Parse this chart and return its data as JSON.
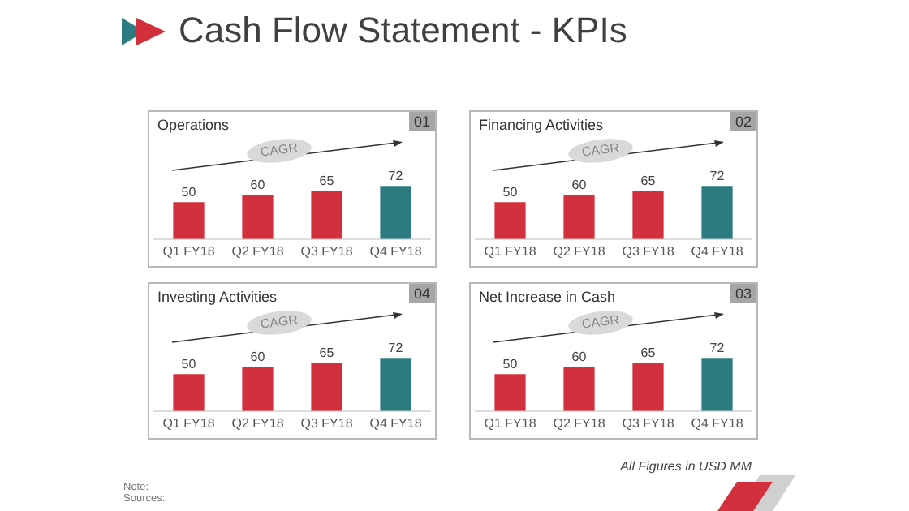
{
  "chart_data": [
    {
      "type": "other",
      "title": "Cash Flow Statement - KPIs",
      "annotations": [
        "All Figures in USD MM",
        "Note:",
        "Sources:"
      ]
    },
    {
      "type": "bar",
      "title": "Operations",
      "categories": [
        "Q1 FY18",
        "Q2 FY18",
        "Q3 FY18",
        "Q4 FY18"
      ],
      "values": [
        50,
        60,
        65,
        72
      ],
      "colors": [
        "#d3303d",
        "#d3303d",
        "#d3303d",
        "#2c7b80"
      ],
      "data_labels": true,
      "tick_labels": "x",
      "annotations": [
        "01",
        "CAGR"
      ]
    },
    {
      "type": "bar",
      "title": "Financing Activities",
      "categories": [
        "Q1 FY18",
        "Q2 FY18",
        "Q3 FY18",
        "Q4 FY18"
      ],
      "values": [
        50,
        60,
        65,
        72
      ],
      "colors": [
        "#d3303d",
        "#d3303d",
        "#d3303d",
        "#2c7b80"
      ],
      "data_labels": true,
      "tick_labels": "x",
      "annotations": [
        "02",
        "CAGR"
      ]
    },
    {
      "type": "bar",
      "title": "Investing Activities",
      "categories": [
        "Q1 FY18",
        "Q2 FY18",
        "Q3 FY18",
        "Q4 FY18"
      ],
      "values": [
        50,
        60,
        65,
        72
      ],
      "colors": [
        "#d3303d",
        "#d3303d",
        "#d3303d",
        "#2c7b80"
      ],
      "data_labels": true,
      "tick_labels": "x",
      "annotations": [
        "04",
        "CAGR"
      ]
    },
    {
      "type": "bar",
      "title": "Net Increase in Cash",
      "categories": [
        "Q1 FY18",
        "Q2 FY18",
        "Q3 FY18",
        "Q4 FY18"
      ],
      "values": [
        50,
        60,
        65,
        72
      ],
      "colors": [
        "#d3303d",
        "#d3303d",
        "#d3303d",
        "#2c7b80"
      ],
      "data_labels": true,
      "tick_labels": "x",
      "annotations": [
        "03",
        "CAGR"
      ]
    }
  ]
}
